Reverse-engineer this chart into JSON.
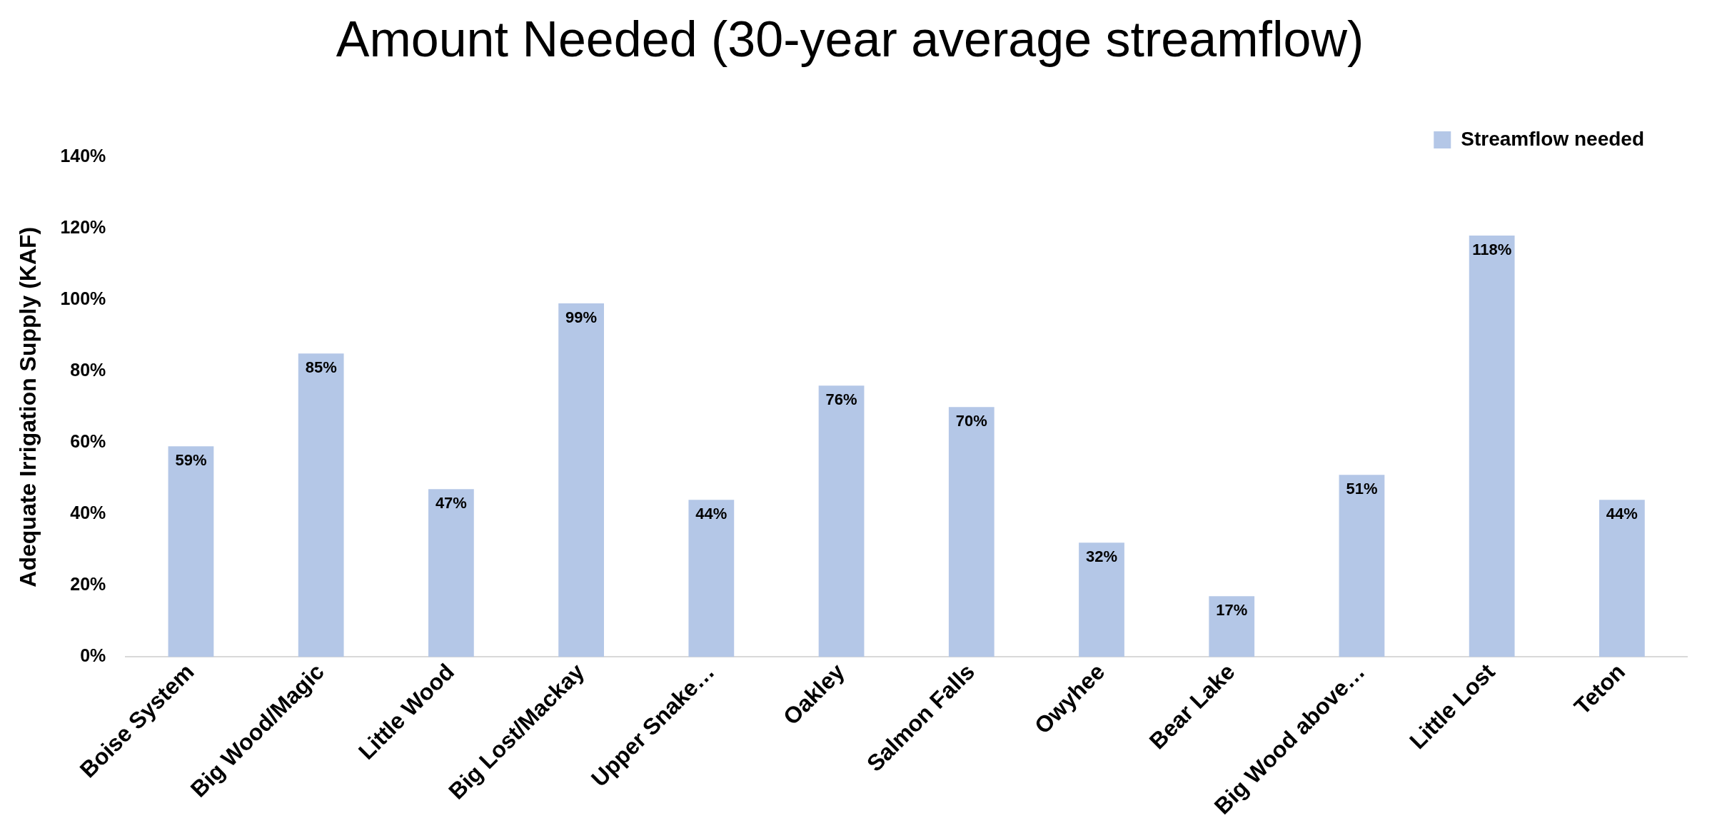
{
  "chart_data": {
    "type": "bar",
    "title": "Amount Needed (30-year average streamflow)",
    "ylabel": "Adequate Irrigation Supply (KAF)",
    "categories": [
      "Boise System",
      "Big Wood/Magic",
      "Little Wood",
      "Big Lost/Mackay",
      "Upper Snake…",
      "Oakley",
      "Salmon Falls",
      "Owyhee",
      "Bear Lake",
      "Big Wood above…",
      "Little Lost",
      "Teton"
    ],
    "series": [
      {
        "name": "Streamflow needed",
        "color": "#b4c7e7",
        "values": [
          59,
          85,
          47,
          99,
          44,
          76,
          70,
          32,
          17,
          51,
          118,
          44
        ]
      }
    ],
    "value_labels": [
      "59%",
      "85%",
      "47%",
      "99%",
      "44%",
      "76%",
      "70%",
      "32%",
      "17%",
      "51%",
      "118%",
      "44%"
    ],
    "ylim": [
      0,
      140
    ],
    "yticks": [
      {
        "value": 0,
        "label": "0%"
      },
      {
        "value": 20,
        "label": "20%"
      },
      {
        "value": 40,
        "label": "40%"
      },
      {
        "value": 60,
        "label": "60%"
      },
      {
        "value": 80,
        "label": "80%"
      },
      {
        "value": 100,
        "label": "100%"
      },
      {
        "value": 120,
        "label": "120%"
      },
      {
        "value": 140,
        "label": "140%"
      }
    ],
    "grid": false,
    "legend": "top right"
  }
}
